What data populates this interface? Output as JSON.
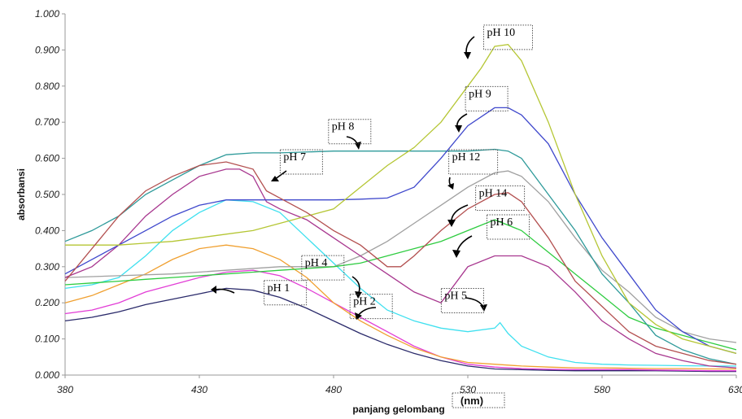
{
  "chart_data": {
    "type": "line",
    "title": "",
    "xlabel": "panjang gelombang",
    "xlabel_unit": "(nm)",
    "ylabel": "absorbansi",
    "xlim": [
      380,
      630
    ],
    "ylim": [
      0,
      1.0
    ],
    "x_ticks": [
      "380",
      "430",
      "480",
      "530",
      "580",
      "630"
    ],
    "y_ticks": [
      "0.000",
      "0.100",
      "0.200",
      "0.300",
      "0.400",
      "0.500",
      "0.600",
      "0.700",
      "0.800",
      "0.900",
      "1.000"
    ],
    "grid": false,
    "series": [
      {
        "name": "pH 1",
        "color": "#2b2b6b",
        "x": [
          380,
          390,
          400,
          410,
          420,
          430,
          440,
          450,
          460,
          470,
          480,
          490,
          500,
          510,
          520,
          530,
          540,
          550,
          560,
          570,
          580,
          590,
          600,
          610,
          620,
          630
        ],
        "y": [
          0.15,
          0.16,
          0.175,
          0.195,
          0.21,
          0.225,
          0.24,
          0.235,
          0.215,
          0.185,
          0.15,
          0.115,
          0.085,
          0.06,
          0.04,
          0.025,
          0.017,
          0.015,
          0.013,
          0.012,
          0.012,
          0.012,
          0.012,
          0.011,
          0.01,
          0.01
        ]
      },
      {
        "name": "pH 2",
        "color": "#e23ed6",
        "x": [
          380,
          390,
          400,
          410,
          420,
          430,
          440,
          450,
          460,
          470,
          480,
          490,
          500,
          510,
          520,
          530,
          540,
          550,
          560,
          570,
          580,
          590,
          600,
          610,
          620,
          630
        ],
        "y": [
          0.17,
          0.18,
          0.2,
          0.23,
          0.25,
          0.27,
          0.285,
          0.29,
          0.275,
          0.24,
          0.2,
          0.16,
          0.12,
          0.08,
          0.05,
          0.03,
          0.022,
          0.018,
          0.016,
          0.015,
          0.015,
          0.015,
          0.014,
          0.013,
          0.012,
          0.012
        ]
      },
      {
        "name": "",
        "color": "#f0a030",
        "x": [
          380,
          390,
          400,
          410,
          420,
          430,
          440,
          450,
          460,
          470,
          480,
          490,
          500,
          510,
          520,
          530,
          540,
          550,
          560,
          570,
          580,
          590,
          600,
          610,
          620,
          630
        ],
        "y": [
          0.2,
          0.22,
          0.25,
          0.28,
          0.32,
          0.35,
          0.36,
          0.35,
          0.32,
          0.27,
          0.2,
          0.15,
          0.11,
          0.075,
          0.05,
          0.035,
          0.03,
          0.025,
          0.022,
          0.02,
          0.02,
          0.019,
          0.018,
          0.018,
          0.017,
          0.017
        ]
      },
      {
        "name": "pH 5",
        "color": "#3fe0ef",
        "x": [
          380,
          390,
          400,
          410,
          420,
          430,
          440,
          450,
          460,
          470,
          480,
          490,
          500,
          510,
          520,
          530,
          540,
          542,
          545,
          550,
          560,
          570,
          580,
          590,
          600,
          610,
          620,
          630
        ],
        "y": [
          0.24,
          0.25,
          0.27,
          0.33,
          0.4,
          0.45,
          0.485,
          0.48,
          0.45,
          0.38,
          0.31,
          0.24,
          0.18,
          0.15,
          0.13,
          0.12,
          0.13,
          0.145,
          0.115,
          0.08,
          0.05,
          0.035,
          0.03,
          0.028,
          0.027,
          0.026,
          0.025,
          0.025
        ]
      },
      {
        "name": "pH 4",
        "color": "#a0a0a0",
        "x": [
          380,
          400,
          420,
          440,
          460,
          480,
          490,
          500,
          510,
          520,
          530,
          540,
          545,
          550,
          560,
          570,
          580,
          590,
          600,
          610,
          620,
          630
        ],
        "y": [
          0.27,
          0.275,
          0.28,
          0.29,
          0.3,
          0.3,
          0.33,
          0.37,
          0.42,
          0.47,
          0.52,
          0.56,
          0.565,
          0.55,
          0.48,
          0.38,
          0.29,
          0.23,
          0.16,
          0.12,
          0.1,
          0.09
        ]
      },
      {
        "name": "pH 6",
        "color": "#2ecc40",
        "x": [
          380,
          390,
          400,
          410,
          420,
          430,
          440,
          450,
          460,
          470,
          480,
          490,
          500,
          510,
          520,
          530,
          540,
          550,
          560,
          570,
          580,
          590,
          600,
          610,
          620,
          630
        ],
        "y": [
          0.25,
          0.255,
          0.26,
          0.265,
          0.27,
          0.275,
          0.28,
          0.285,
          0.29,
          0.295,
          0.3,
          0.31,
          0.33,
          0.35,
          0.37,
          0.4,
          0.43,
          0.4,
          0.34,
          0.28,
          0.22,
          0.16,
          0.13,
          0.11,
          0.09,
          0.07
        ]
      },
      {
        "name": "pH 7",
        "color": "#a8378f",
        "x": [
          380,
          390,
          400,
          410,
          420,
          430,
          440,
          445,
          450,
          455,
          460,
          470,
          480,
          490,
          500,
          510,
          520,
          530,
          540,
          550,
          560,
          570,
          580,
          590,
          600,
          610,
          620,
          630
        ],
        "y": [
          0.27,
          0.3,
          0.36,
          0.44,
          0.5,
          0.55,
          0.57,
          0.57,
          0.55,
          0.48,
          0.46,
          0.43,
          0.38,
          0.33,
          0.28,
          0.23,
          0.2,
          0.3,
          0.33,
          0.33,
          0.3,
          0.23,
          0.15,
          0.1,
          0.06,
          0.04,
          0.025,
          0.02
        ]
      },
      {
        "name": "pH 8",
        "color": "#2e9a9a",
        "x": [
          380,
          390,
          400,
          410,
          420,
          430,
          440,
          450,
          460,
          480,
          500,
          520,
          530,
          540,
          545,
          550,
          560,
          570,
          580,
          590,
          600,
          610,
          620,
          630
        ],
        "y": [
          0.37,
          0.4,
          0.44,
          0.5,
          0.54,
          0.58,
          0.61,
          0.615,
          0.615,
          0.62,
          0.62,
          0.62,
          0.62,
          0.625,
          0.62,
          0.6,
          0.5,
          0.4,
          0.28,
          0.2,
          0.11,
          0.07,
          0.045,
          0.03
        ]
      },
      {
        "name": "pH 9",
        "color": "#3f48cc",
        "x": [
          380,
          390,
          400,
          410,
          420,
          430,
          440,
          450,
          460,
          470,
          480,
          490,
          500,
          510,
          520,
          530,
          540,
          545,
          550,
          560,
          570,
          580,
          590,
          600,
          610,
          620,
          630
        ],
        "y": [
          0.28,
          0.32,
          0.36,
          0.4,
          0.44,
          0.47,
          0.485,
          0.485,
          0.485,
          0.485,
          0.485,
          0.487,
          0.49,
          0.52,
          0.6,
          0.69,
          0.74,
          0.74,
          0.72,
          0.64,
          0.5,
          0.38,
          0.28,
          0.18,
          0.12,
          0.08,
          0.06
        ]
      },
      {
        "name": "pH 10",
        "color": "#b5c634",
        "x": [
          380,
          390,
          400,
          410,
          420,
          430,
          440,
          450,
          460,
          470,
          480,
          490,
          500,
          510,
          520,
          530,
          535,
          540,
          545,
          550,
          560,
          570,
          580,
          590,
          600,
          610,
          620,
          630
        ],
        "y": [
          0.36,
          0.36,
          0.36,
          0.365,
          0.37,
          0.38,
          0.39,
          0.4,
          0.42,
          0.44,
          0.46,
          0.52,
          0.58,
          0.63,
          0.7,
          0.8,
          0.85,
          0.91,
          0.915,
          0.87,
          0.7,
          0.5,
          0.33,
          0.2,
          0.14,
          0.1,
          0.08,
          0.06
        ]
      },
      {
        "name": "pH 14",
        "color": "#b35050",
        "x": [
          380,
          390,
          400,
          410,
          420,
          430,
          440,
          450,
          455,
          460,
          470,
          480,
          490,
          500,
          505,
          510,
          520,
          530,
          540,
          545,
          550,
          560,
          570,
          580,
          590,
          600,
          610,
          620,
          630
        ],
        "y": [
          0.26,
          0.35,
          0.44,
          0.51,
          0.55,
          0.58,
          0.59,
          0.57,
          0.51,
          0.49,
          0.45,
          0.4,
          0.36,
          0.3,
          0.3,
          0.33,
          0.4,
          0.46,
          0.5,
          0.505,
          0.48,
          0.38,
          0.26,
          0.19,
          0.12,
          0.08,
          0.06,
          0.04,
          0.03
        ]
      }
    ],
    "annotations": [
      {
        "label": "pH 10",
        "x": 545,
        "y": 0.935
      },
      {
        "label": "pH 9",
        "x": 537,
        "y": 0.765
      },
      {
        "label": "pH 8",
        "x": 486,
        "y": 0.674
      },
      {
        "label": "pH 7",
        "x": 468,
        "y": 0.59
      },
      {
        "label": "pH 12",
        "x": 532,
        "y": 0.59
      },
      {
        "label": "pH 14",
        "x": 542,
        "y": 0.49
      },
      {
        "label": "pH 6",
        "x": 545,
        "y": 0.41
      },
      {
        "label": "pH 4",
        "x": 476,
        "y": 0.297
      },
      {
        "label": "pH 1",
        "x": 462,
        "y": 0.228
      },
      {
        "label": "pH 2",
        "x": 494,
        "y": 0.19
      },
      {
        "label": "pH 5",
        "x": 528,
        "y": 0.206
      }
    ]
  }
}
